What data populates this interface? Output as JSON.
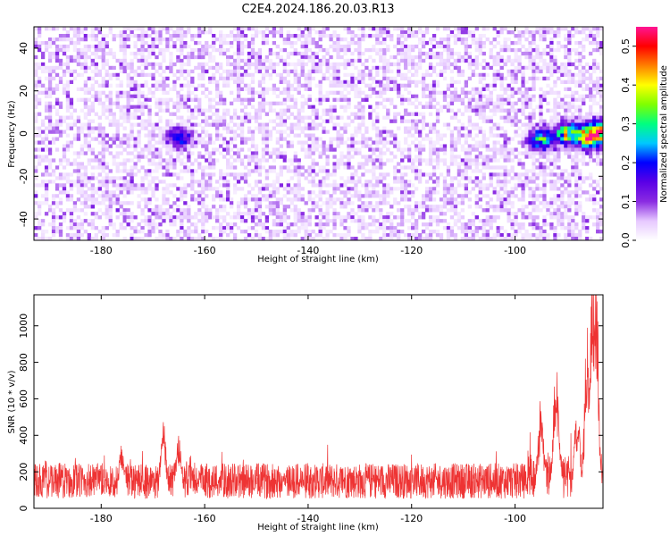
{
  "figure_title": "C2E4.2024.186.20.03.R13",
  "chart_data": [
    {
      "type": "heatmap",
      "title": "C2E4.2024.186.20.03.R13",
      "xlabel": "Height of straight line (km)",
      "ylabel": "Frequency (Hz)",
      "xlim": [
        -193,
        -83
      ],
      "ylim": [
        -50,
        50
      ],
      "xticks": [
        -180,
        -160,
        -140,
        -120,
        -100
      ],
      "yticks": [
        -40,
        -20,
        0,
        20,
        40
      ],
      "colorbar": {
        "label": "Normalized spectral amplitude",
        "range": [
          0.0,
          0.55
        ],
        "ticks": [
          0.0,
          0.1,
          0.2,
          0.3,
          0.4,
          0.5
        ],
        "colormap": [
          "#ffffff",
          "#e6c8ff",
          "#8a2be2",
          "#5a00e6",
          "#0000ff",
          "#00c8ff",
          "#00ff80",
          "#7fff00",
          "#ffff00",
          "#ff8000",
          "#ff0000",
          "#ff1493"
        ]
      },
      "noise_level": 0.06,
      "hotspots": [
        {
          "x": -165,
          "y": -2,
          "peak": 0.2
        },
        {
          "x": -95,
          "y": -3,
          "peak": 0.3
        },
        {
          "x": -90,
          "y": 0,
          "peak": 0.38
        },
        {
          "x": -86,
          "y": -2,
          "peak": 0.42
        },
        {
          "x": -84,
          "y": 1,
          "peak": 0.45
        }
      ]
    },
    {
      "type": "line",
      "xlabel": "Height of straight line (km)",
      "ylabel": "SNR (10 * v/v)",
      "xlim": [
        -193,
        -83
      ],
      "ylim": [
        0,
        1170
      ],
      "xticks": [
        -180,
        -160,
        -140,
        -120,
        -100
      ],
      "yticks": [
        0,
        200,
        400,
        600,
        800,
        1000
      ],
      "line_color": "#ee3333",
      "baseline_mean": 150,
      "baseline_peaks": [
        {
          "x": -168,
          "y": 480
        },
        {
          "x": -176,
          "y": 390
        },
        {
          "x": -165,
          "y": 400
        },
        {
          "x": -95,
          "y": 480
        },
        {
          "x": -92,
          "y": 630
        },
        {
          "x": -88,
          "y": 510
        },
        {
          "x": -86,
          "y": 830
        },
        {
          "x": -85,
          "y": 1050
        },
        {
          "x": -84.5,
          "y": 1160
        }
      ]
    }
  ]
}
